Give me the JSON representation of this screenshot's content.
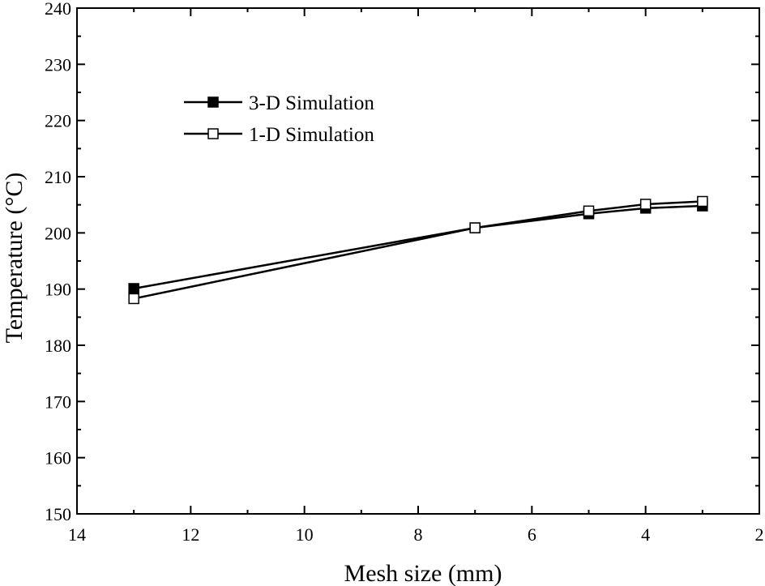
{
  "chart_data": {
    "type": "line",
    "title": "",
    "xlabel": "Mesh size (mm)",
    "ylabel": "Temperature (°C)",
    "xlim": [
      14,
      2
    ],
    "x_reversed": true,
    "ylim": [
      150,
      240
    ],
    "xticks": [
      14,
      12,
      10,
      8,
      6,
      4,
      2
    ],
    "yticks": [
      150,
      160,
      170,
      180,
      190,
      200,
      210,
      220,
      230,
      240
    ],
    "grid": false,
    "legend_position": "top-left",
    "x": [
      13,
      7,
      5,
      4,
      3
    ],
    "series": [
      {
        "name": "3-D Simulation",
        "marker": "filled-square",
        "color": "#000000",
        "values": [
          190.1,
          200.9,
          203.4,
          204.4,
          204.8
        ]
      },
      {
        "name": "1-D Simulation",
        "marker": "open-square",
        "color": "#000000",
        "values": [
          188.3,
          200.9,
          203.9,
          205.1,
          205.6
        ]
      }
    ]
  }
}
